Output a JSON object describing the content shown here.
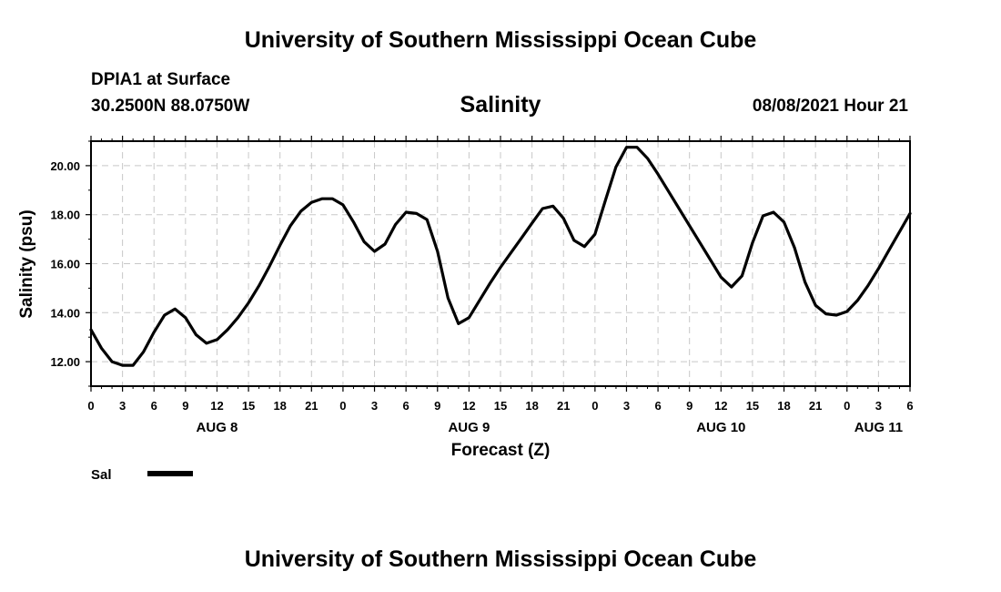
{
  "header": {
    "title": "University of Southern Mississippi Ocean Cube",
    "station": "DPIA1 at Surface",
    "coords": "30.2500N  88.0750W",
    "variable": "Salinity",
    "datetime": "08/08/2021 Hour 21"
  },
  "footer": {
    "title": "University of Southern Mississippi Ocean Cube"
  },
  "chart_data": {
    "type": "line",
    "title": "Salinity",
    "xlabel": "Forecast (Z)",
    "ylabel": "Salinity (psu)",
    "xlim": [
      0,
      78
    ],
    "ylim": [
      11.0,
      21.0
    ],
    "yticks": [
      "12.00",
      "14.00",
      "16.00",
      "18.00",
      "20.00"
    ],
    "ytick_values": [
      12,
      14,
      16,
      18,
      20
    ],
    "xtick_labels": [
      "0",
      "3",
      "6",
      "9",
      "12",
      "15",
      "18",
      "21",
      "0",
      "3",
      "6",
      "9",
      "12",
      "15",
      "18",
      "21",
      "0",
      "3",
      "6",
      "9",
      "12",
      "15",
      "18",
      "21",
      "0",
      "3",
      "6"
    ],
    "day_labels": [
      {
        "label": "AUG 8",
        "hour": 12
      },
      {
        "label": "AUG 9",
        "hour": 36
      },
      {
        "label": "AUG 10",
        "hour": 60
      },
      {
        "label": "AUG 11",
        "hour": 75
      }
    ],
    "grid": true,
    "legend_position": "bottom-left",
    "series": [
      {
        "name": "Sal",
        "color": "#000000",
        "x": [
          0,
          1,
          2,
          3,
          4,
          5,
          6,
          7,
          8,
          9,
          10,
          11,
          12,
          13,
          14,
          15,
          16,
          17,
          18,
          19,
          20,
          21,
          22,
          23,
          24,
          25,
          26,
          27,
          28,
          29,
          30,
          31,
          32,
          33,
          34,
          35,
          36,
          37,
          38,
          39,
          40,
          41,
          42,
          43,
          44,
          45,
          46,
          47,
          48,
          49,
          50,
          51,
          52,
          53,
          54,
          55,
          56,
          57,
          58,
          59,
          60,
          61,
          62,
          63,
          64,
          65,
          66,
          67,
          68,
          69,
          70,
          71,
          72,
          73,
          74,
          75,
          76,
          77,
          78
        ],
        "values": [
          13.3,
          12.55,
          12.0,
          11.85,
          11.85,
          12.4,
          13.2,
          13.9,
          14.15,
          13.8,
          13.1,
          12.75,
          12.9,
          13.3,
          13.8,
          14.4,
          15.1,
          15.9,
          16.75,
          17.55,
          18.15,
          18.5,
          18.65,
          18.65,
          18.4,
          17.7,
          16.9,
          16.5,
          16.8,
          17.6,
          18.1,
          18.05,
          17.8,
          16.5,
          14.6,
          13.55,
          13.8,
          14.5,
          15.2,
          15.85,
          16.45,
          17.05,
          17.65,
          18.25,
          18.35,
          17.85,
          16.95,
          16.7,
          17.2,
          18.6,
          19.95,
          20.75,
          20.75,
          20.3,
          19.65,
          18.95,
          18.25,
          17.55,
          16.85,
          16.15,
          15.45,
          15.05,
          15.5,
          16.85,
          17.95,
          18.1,
          17.7,
          16.65,
          15.25,
          14.3,
          13.95,
          13.9,
          14.05,
          14.5,
          15.1,
          15.8,
          16.55,
          17.3,
          18.05
        ]
      }
    ]
  }
}
